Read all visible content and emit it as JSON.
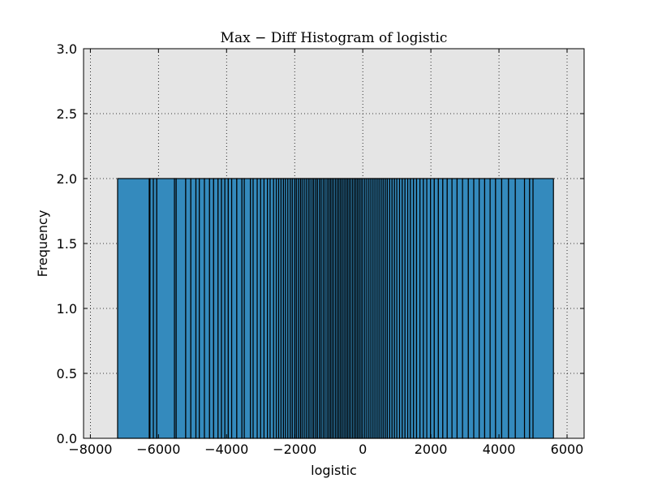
{
  "chart_data": {
    "type": "bar",
    "title": "Max − Diff Histogram of logistic",
    "xlabel": "logistic",
    "ylabel": "Frequency",
    "xlim": [
      -8200,
      6500
    ],
    "ylim": [
      0,
      3.0
    ],
    "xticks": [
      -8000,
      -6000,
      -4000,
      -2000,
      0,
      2000,
      4000,
      6000
    ],
    "xtick_labels": [
      "−8000",
      "−6000",
      "−4000",
      "−2000",
      "0",
      "2000",
      "4000",
      "6000"
    ],
    "yticks": [
      0.0,
      0.5,
      1.0,
      1.5,
      2.0,
      2.5,
      3.0
    ],
    "ytick_labels": [
      "0.0",
      "0.5",
      "1.0",
      "1.5",
      "2.0",
      "2.5",
      "3.0"
    ],
    "grid": true,
    "bar_color": "#348ABD",
    "edge_color": "#000000",
    "plot_background": "#E5E5E5",
    "bin_count_each": 2,
    "bin_edges": [
      -7200,
      -6270,
      -6250,
      -6150,
      -6050,
      -5530,
      -5480,
      -5200,
      -5050,
      -4900,
      -4800,
      -4650,
      -4500,
      -4380,
      -4250,
      -4150,
      -4050,
      -3950,
      -3850,
      -3700,
      -3550,
      -3480,
      -3300,
      -3220,
      -3100,
      -3000,
      -2900,
      -2800,
      -2720,
      -2620,
      -2540,
      -2470,
      -2400,
      -2330,
      -2270,
      -2200,
      -2130,
      -2070,
      -2000,
      -1950,
      -1890,
      -1830,
      -1780,
      -1720,
      -1660,
      -1600,
      -1550,
      -1490,
      -1440,
      -1380,
      -1330,
      -1270,
      -1220,
      -1160,
      -1110,
      -1050,
      -1000,
      -950,
      -900,
      -850,
      -800,
      -750,
      -700,
      -650,
      -600,
      -550,
      -500,
      -450,
      -400,
      -350,
      -300,
      -250,
      -200,
      -150,
      -100,
      -50,
      0,
      60,
      120,
      180,
      240,
      300,
      360,
      420,
      480,
      540,
      600,
      660,
      720,
      790,
      860,
      930,
      1000,
      1080,
      1160,
      1240,
      1320,
      1400,
      1490,
      1580,
      1680,
      1780,
      1880,
      1990,
      2100,
      2220,
      2350,
      2480,
      2620,
      2770,
      2930,
      3100,
      3260,
      3420,
      3580,
      3740,
      3900,
      4080,
      4280,
      4480,
      4750,
      4900,
      5000,
      5600
    ]
  }
}
